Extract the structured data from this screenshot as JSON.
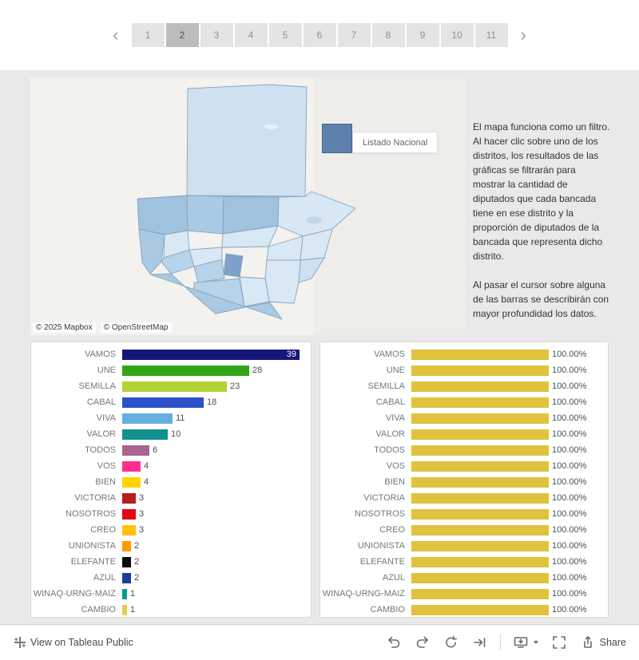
{
  "pagination": {
    "prev_icon": "‹",
    "next_icon": "›",
    "pages": [
      "1",
      "2",
      "3",
      "4",
      "5",
      "6",
      "7",
      "8",
      "9",
      "10",
      "11"
    ],
    "active_page": "2"
  },
  "map": {
    "legend_label": "Listado Nacional",
    "legend_color": "#5d80ac",
    "attribution": [
      "© 2025 Mapbox",
      "© OpenStreetMap"
    ]
  },
  "info": {
    "para1": "El mapa funciona como un filtro. Al hacer clic sobre uno de los distritos, los resultados de las gráficas se filtrarán para mostrar la cantidad de diputados que cada bancada tiene en ese distrito y la proporción de diputados de la bancada que representa dicho distrito.",
    "para2": "Al pasar el cursor sobre alguna de las barras se describirán con mayor profundidad los datos."
  },
  "chart_data": [
    {
      "type": "bar",
      "orientation": "horizontal",
      "title": "",
      "categories": [
        "VAMOS",
        "UNE",
        "SEMILLA",
        "CABAL",
        "VIVA",
        "VALOR",
        "TODOS",
        "VOS",
        "BIEN",
        "VICTORIA",
        "NOSOTROS",
        "CREO",
        "UNIONISTA",
        "ELEFANTE",
        "AZUL",
        "WINAQ-URNG-MAIZ",
        "CAMBIO"
      ],
      "values": [
        39,
        28,
        23,
        18,
        11,
        10,
        6,
        4,
        4,
        3,
        3,
        3,
        2,
        2,
        2,
        1,
        1
      ],
      "colors": [
        "#15157e",
        "#30a615",
        "#b3d334",
        "#2b50c8",
        "#66afe0",
        "#12918e",
        "#a8638f",
        "#ff2e93",
        "#ffd400",
        "#b51f1f",
        "#e30613",
        "#ffc20e",
        "#ff9b00",
        "#0a0a0a",
        "#173e9b",
        "#009e7f",
        "#e3cf45"
      ],
      "xlim": [
        0,
        39
      ],
      "grid": false,
      "legend": false
    },
    {
      "type": "bar",
      "orientation": "horizontal",
      "title": "",
      "categories": [
        "VAMOS",
        "UNE",
        "SEMILLA",
        "CABAL",
        "VIVA",
        "VALOR",
        "TODOS",
        "VOS",
        "BIEN",
        "VICTORIA",
        "NOSOTROS",
        "CREO",
        "UNIONISTA",
        "ELEFANTE",
        "AZUL",
        "WINAQ-URNG-MAIZ",
        "CAMBIO"
      ],
      "values": [
        100,
        100,
        100,
        100,
        100,
        100,
        100,
        100,
        100,
        100,
        100,
        100,
        100,
        100,
        100,
        100,
        100
      ],
      "value_label": "100.00%",
      "bar_color": "#e0c23c",
      "xlim": [
        0,
        100
      ],
      "grid": false,
      "legend": false
    }
  ],
  "toolbar": {
    "view_label": "View on Tableau Public",
    "share_label": "Share",
    "icons": [
      "tableau-logo",
      "undo",
      "redo",
      "replay",
      "resume",
      "download",
      "caret-down",
      "fullscreen",
      "share"
    ]
  }
}
